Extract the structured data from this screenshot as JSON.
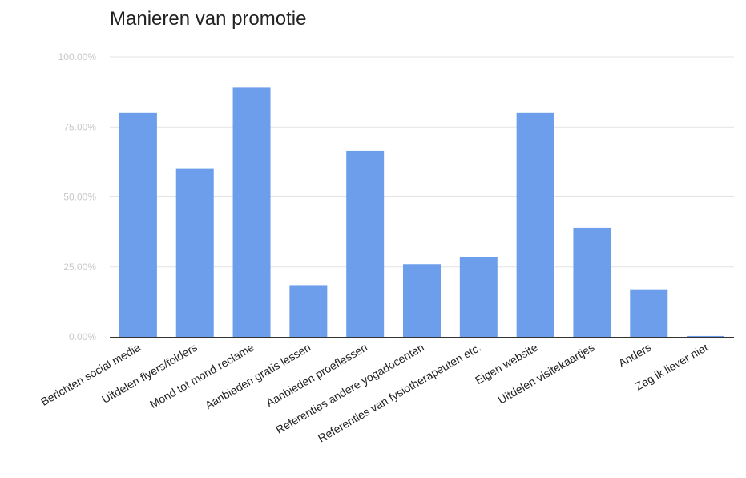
{
  "chart_data": {
    "type": "bar",
    "title": "Manieren van promotie",
    "xlabel": "",
    "ylabel": "",
    "ylim": [
      0,
      100
    ],
    "yticks": [
      0,
      25,
      50,
      75,
      100
    ],
    "ytick_labels": [
      "0.00%",
      "25.00%",
      "50.00%",
      "75.00%",
      "100.00%"
    ],
    "grid": true,
    "legend": "none",
    "categories": [
      "Berichten social media",
      "Uitdelen flyers/folders",
      "Mond tot mond reclame",
      "Aanbieden gratis lessen",
      "Aanbieden proeflessen",
      "Referenties andere yogadocenten",
      "Referenties van fysiotherapeuten etc.",
      "Eigen website",
      "Uitdelen visitekaartjes",
      "Anders",
      "Zeg ik liever niet"
    ],
    "values": [
      80,
      60,
      89,
      18.5,
      66.5,
      26,
      28.5,
      80,
      39,
      17,
      0.3
    ],
    "colors": {
      "bar": "#6d9eeb",
      "grid": "#e3e3e3",
      "axis": "#333333",
      "tick_text": "#c8c8c8",
      "label_text": "#222222"
    }
  }
}
